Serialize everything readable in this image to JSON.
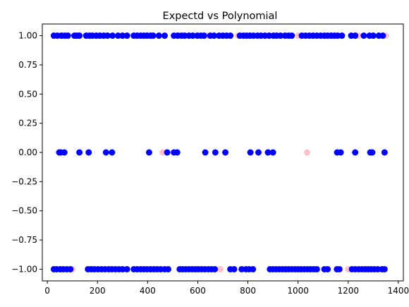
{
  "chart_data": {
    "type": "scatter",
    "title": "Expectd vs Polynomial",
    "xlabel": "",
    "ylabel": "",
    "xlim": [
      -20,
      1420
    ],
    "ylim": [
      -1.1,
      1.1
    ],
    "xticks": [
      0,
      200,
      400,
      600,
      800,
      1000,
      1200,
      1400
    ],
    "yticks": [
      1.0,
      0.75,
      0.5,
      0.25,
      0.0,
      -0.25,
      -0.5,
      -0.75,
      -1.0
    ],
    "xtick_labels": [
      "0",
      "200",
      "400",
      "600",
      "800",
      "1000",
      "1200",
      "1400"
    ],
    "ytick_labels": [
      "1.00",
      "0.75",
      "0.50",
      "0.25",
      "0.00",
      "−0.25",
      "−0.50",
      "−0.75",
      "−1.00"
    ],
    "grid": false,
    "legend": "none",
    "series": [
      {
        "color": "#ffc0cb",
        "points": [
          [
            26,
            1
          ],
          [
            60,
            1
          ],
          [
            110,
            1
          ],
          [
            200,
            1
          ],
          [
            300,
            1
          ],
          [
            420,
            1
          ],
          [
            520,
            1
          ],
          [
            640,
            1
          ],
          [
            760,
            1
          ],
          [
            880,
            1
          ],
          [
            1000,
            1
          ],
          [
            1120,
            1
          ],
          [
            1240,
            1
          ],
          [
            1350,
            1
          ],
          [
            45,
            0
          ],
          [
            460,
            0
          ],
          [
            475,
            0
          ],
          [
            1036,
            0
          ],
          [
            30,
            -1
          ],
          [
            100,
            -1
          ],
          [
            180,
            -1
          ],
          [
            310,
            -1
          ],
          [
            450,
            -1
          ],
          [
            570,
            -1
          ],
          [
            690,
            -1
          ],
          [
            820,
            -1
          ],
          [
            940,
            -1
          ],
          [
            1070,
            -1
          ],
          [
            1200,
            -1
          ],
          [
            1340,
            -1
          ]
        ]
      },
      {
        "color": "#0000ff",
        "points": [
          [
            26,
            1
          ],
          [
            40,
            1
          ],
          [
            56,
            1
          ],
          [
            70,
            1
          ],
          [
            82,
            1
          ],
          [
            108,
            1
          ],
          [
            118,
            1
          ],
          [
            128,
            1
          ],
          [
            155,
            1
          ],
          [
            168,
            1
          ],
          [
            180,
            1
          ],
          [
            195,
            1
          ],
          [
            210,
            1
          ],
          [
            225,
            1
          ],
          [
            240,
            1
          ],
          [
            260,
            1
          ],
          [
            282,
            1
          ],
          [
            300,
            1
          ],
          [
            318,
            1
          ],
          [
            345,
            1
          ],
          [
            358,
            1
          ],
          [
            372,
            1
          ],
          [
            385,
            1
          ],
          [
            398,
            1
          ],
          [
            412,
            1
          ],
          [
            422,
            1
          ],
          [
            445,
            1
          ],
          [
            468,
            1
          ],
          [
            505,
            1
          ],
          [
            520,
            1
          ],
          [
            535,
            1
          ],
          [
            548,
            1
          ],
          [
            565,
            1
          ],
          [
            580,
            1
          ],
          [
            598,
            1
          ],
          [
            612,
            1
          ],
          [
            625,
            1
          ],
          [
            650,
            1
          ],
          [
            665,
            1
          ],
          [
            685,
            1
          ],
          [
            700,
            1
          ],
          [
            715,
            1
          ],
          [
            730,
            1
          ],
          [
            768,
            1
          ],
          [
            782,
            1
          ],
          [
            795,
            1
          ],
          [
            808,
            1
          ],
          [
            822,
            1
          ],
          [
            838,
            1
          ],
          [
            852,
            1
          ],
          [
            868,
            1
          ],
          [
            885,
            1
          ],
          [
            902,
            1
          ],
          [
            915,
            1
          ],
          [
            930,
            1
          ],
          [
            948,
            1
          ],
          [
            962,
            1
          ],
          [
            975,
            1
          ],
          [
            1015,
            1
          ],
          [
            1030,
            1
          ],
          [
            1045,
            1
          ],
          [
            1060,
            1
          ],
          [
            1075,
            1
          ],
          [
            1090,
            1
          ],
          [
            1105,
            1
          ],
          [
            1118,
            1
          ],
          [
            1132,
            1
          ],
          [
            1145,
            1
          ],
          [
            1158,
            1
          ],
          [
            1175,
            1
          ],
          [
            1212,
            1
          ],
          [
            1228,
            1
          ],
          [
            1262,
            1
          ],
          [
            1285,
            1
          ],
          [
            1300,
            1
          ],
          [
            1322,
            1
          ],
          [
            1338,
            1
          ],
          [
            48,
            0
          ],
          [
            54,
            0
          ],
          [
            68,
            0
          ],
          [
            128,
            0
          ],
          [
            165,
            0
          ],
          [
            234,
            0
          ],
          [
            258,
            0
          ],
          [
            406,
            0
          ],
          [
            478,
            0
          ],
          [
            505,
            0
          ],
          [
            518,
            0
          ],
          [
            630,
            0
          ],
          [
            670,
            0
          ],
          [
            710,
            0
          ],
          [
            810,
            0
          ],
          [
            842,
            0
          ],
          [
            880,
            0
          ],
          [
            900,
            0
          ],
          [
            1156,
            0
          ],
          [
            1170,
            0
          ],
          [
            1228,
            0
          ],
          [
            1288,
            0
          ],
          [
            1296,
            0
          ],
          [
            1345,
            0
          ],
          [
            26,
            -1
          ],
          [
            38,
            -1
          ],
          [
            52,
            -1
          ],
          [
            64,
            -1
          ],
          [
            78,
            -1
          ],
          [
            92,
            -1
          ],
          [
            162,
            -1
          ],
          [
            175,
            -1
          ],
          [
            188,
            -1
          ],
          [
            202,
            -1
          ],
          [
            216,
            -1
          ],
          [
            230,
            -1
          ],
          [
            245,
            -1
          ],
          [
            258,
            -1
          ],
          [
            272,
            -1
          ],
          [
            286,
            -1
          ],
          [
            300,
            -1
          ],
          [
            318,
            -1
          ],
          [
            345,
            -1
          ],
          [
            358,
            -1
          ],
          [
            372,
            -1
          ],
          [
            385,
            -1
          ],
          [
            398,
            -1
          ],
          [
            412,
            -1
          ],
          [
            425,
            -1
          ],
          [
            438,
            -1
          ],
          [
            452,
            -1
          ],
          [
            468,
            -1
          ],
          [
            482,
            -1
          ],
          [
            528,
            -1
          ],
          [
            540,
            -1
          ],
          [
            552,
            -1
          ],
          [
            565,
            -1
          ],
          [
            578,
            -1
          ],
          [
            590,
            -1
          ],
          [
            602,
            -1
          ],
          [
            615,
            -1
          ],
          [
            628,
            -1
          ],
          [
            642,
            -1
          ],
          [
            655,
            -1
          ],
          [
            668,
            -1
          ],
          [
            730,
            -1
          ],
          [
            745,
            -1
          ],
          [
            775,
            -1
          ],
          [
            792,
            -1
          ],
          [
            805,
            -1
          ],
          [
            820,
            -1
          ],
          [
            888,
            -1
          ],
          [
            900,
            -1
          ],
          [
            912,
            -1
          ],
          [
            925,
            -1
          ],
          [
            938,
            -1
          ],
          [
            950,
            -1
          ],
          [
            962,
            -1
          ],
          [
            975,
            -1
          ],
          [
            988,
            -1
          ],
          [
            1000,
            -1
          ],
          [
            1012,
            -1
          ],
          [
            1025,
            -1
          ],
          [
            1038,
            -1
          ],
          [
            1050,
            -1
          ],
          [
            1062,
            -1
          ],
          [
            1075,
            -1
          ],
          [
            1105,
            -1
          ],
          [
            1118,
            -1
          ],
          [
            1155,
            -1
          ],
          [
            1165,
            -1
          ],
          [
            1215,
            -1
          ],
          [
            1228,
            -1
          ],
          [
            1242,
            -1
          ],
          [
            1255,
            -1
          ],
          [
            1268,
            -1
          ],
          [
            1280,
            -1
          ],
          [
            1292,
            -1
          ],
          [
            1305,
            -1
          ],
          [
            1318,
            -1
          ],
          [
            1335,
            -1
          ],
          [
            1345,
            -1
          ]
        ]
      }
    ]
  }
}
